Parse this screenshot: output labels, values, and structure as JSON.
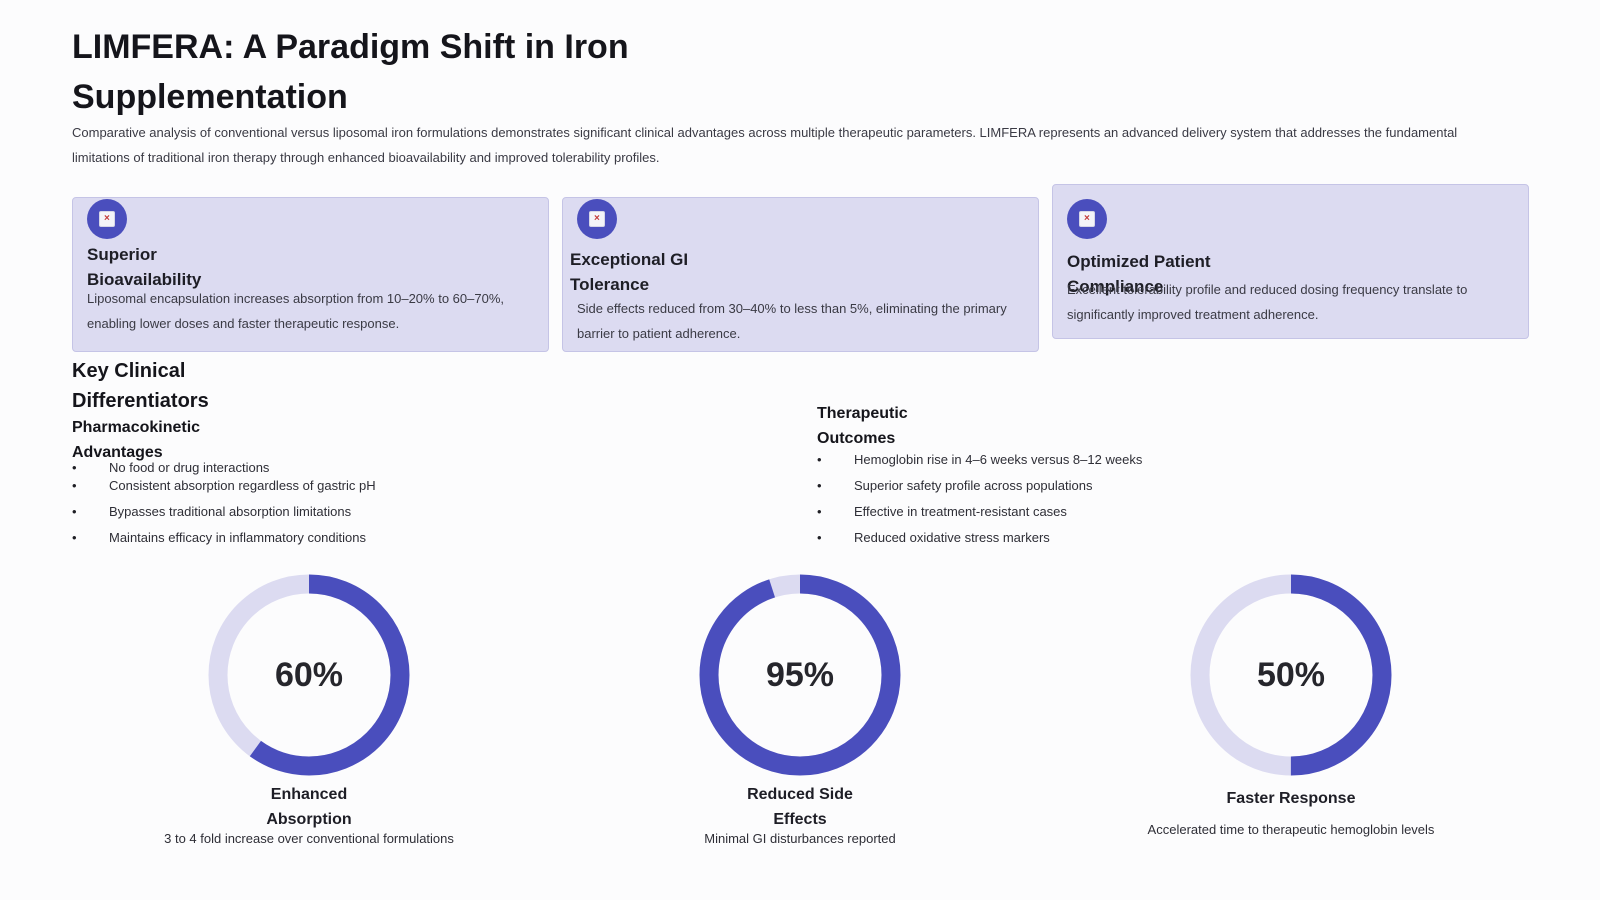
{
  "header": {
    "title": "LIMFERA: A Paradigm Shift in Iron Supplementation",
    "intro": "Comparative analysis of conventional versus liposomal iron formulations demonstrates significant clinical advantages across multiple therapeutic parameters. LIMFERA represents an advanced delivery system that addresses the fundamental limitations of traditional iron therapy through enhanced bioavailability and improved tolerability profiles."
  },
  "cards": [
    {
      "icon": "broken-image-icon",
      "title": "Superior Bioavailability",
      "text": "Liposomal encapsulation increases absorption from 10–20% to 60–70%, enabling lower doses and faster therapeutic response."
    },
    {
      "icon": "broken-image-icon",
      "title": "Exceptional GI Tolerance",
      "text": "Side effects reduced from 30–40% to less than 5%, eliminating the primary barrier to patient adherence."
    },
    {
      "icon": "broken-image-icon",
      "title": "Optimized Patient Compliance",
      "text": "Excellent tolerability profile and reduced dosing frequency translate to significantly improved treatment adherence."
    }
  ],
  "differentiators": {
    "heading": "Key Clinical Differentiators",
    "pharmacokinetic": {
      "heading": "Pharmacokinetic Advantages",
      "items": [
        "No food or drug interactions",
        "Consistent absorption regardless of gastric pH",
        "Bypasses traditional absorption limitations",
        "Maintains efficacy in inflammatory conditions"
      ]
    },
    "therapeutic": {
      "heading": "Therapeutic Outcomes",
      "items": [
        "Hemoglobin rise in 4–6 weeks versus 8–12 weeks",
        "Superior safety profile across populations",
        "Effective in treatment-resistant cases",
        "Reduced oxidative stress markers"
      ]
    }
  },
  "metrics": [
    {
      "value": "60%",
      "fraction": 0.6,
      "label": "Enhanced Absorption",
      "sub": "3 to 4 fold increase over conventional formulations"
    },
    {
      "value": "95%",
      "fraction": 0.95,
      "label": "Reduced Side Effects",
      "sub": "Minimal GI disturbances reported"
    },
    {
      "value": "50%",
      "fraction": 0.5,
      "label": "Faster Response",
      "sub": "Accelerated time to therapeutic hemoglobin levels"
    }
  ],
  "colors": {
    "accent": "#4a4ebd",
    "track": "#dcdbf1",
    "card_bg": "#dcdbf1"
  }
}
